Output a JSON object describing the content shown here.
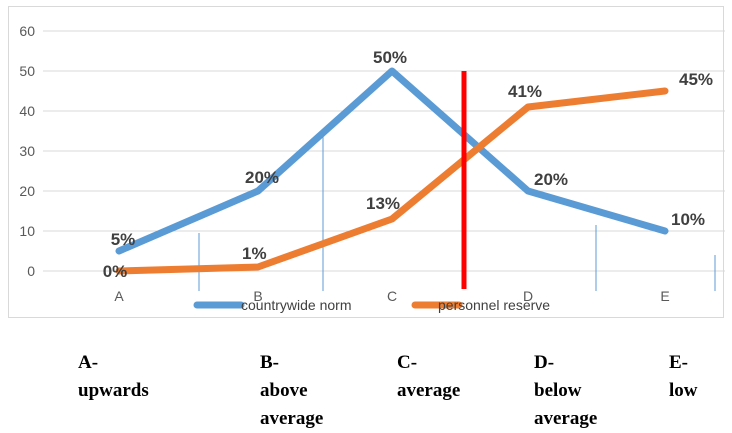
{
  "chart_data": {
    "type": "line",
    "categories": [
      "A",
      "B",
      "C",
      "D",
      "E"
    ],
    "series": [
      {
        "name": "countrywide norm",
        "values": [
          5,
          20,
          50,
          20,
          10
        ],
        "labels": [
          "5%",
          "20%",
          "50%",
          "20%",
          "10%"
        ],
        "color": "#5b9bd5"
      },
      {
        "name": "personnel reserve",
        "values": [
          0,
          1,
          13,
          41,
          45
        ],
        "labels": [
          "0%",
          "1%",
          "13%",
          "41%",
          "45%"
        ],
        "color": "#ed7d31"
      }
    ],
    "ylim": [
      0,
      60
    ],
    "yticks": [
      "0",
      "10",
      "20",
      "30",
      "40",
      "50",
      "60"
    ],
    "grid": true,
    "legend_position": "bottom",
    "marker_line": {
      "color": "#ff0000"
    }
  },
  "captions": [
    {
      "letter": "A-",
      "text": [
        "upwards"
      ]
    },
    {
      "letter": "B-",
      "text": [
        "above",
        "average"
      ]
    },
    {
      "letter": "C-",
      "text": [
        "average"
      ]
    },
    {
      "letter": "D-",
      "text": [
        "below",
        "average"
      ]
    },
    {
      "letter": "E-",
      "text": [
        "low"
      ]
    }
  ]
}
